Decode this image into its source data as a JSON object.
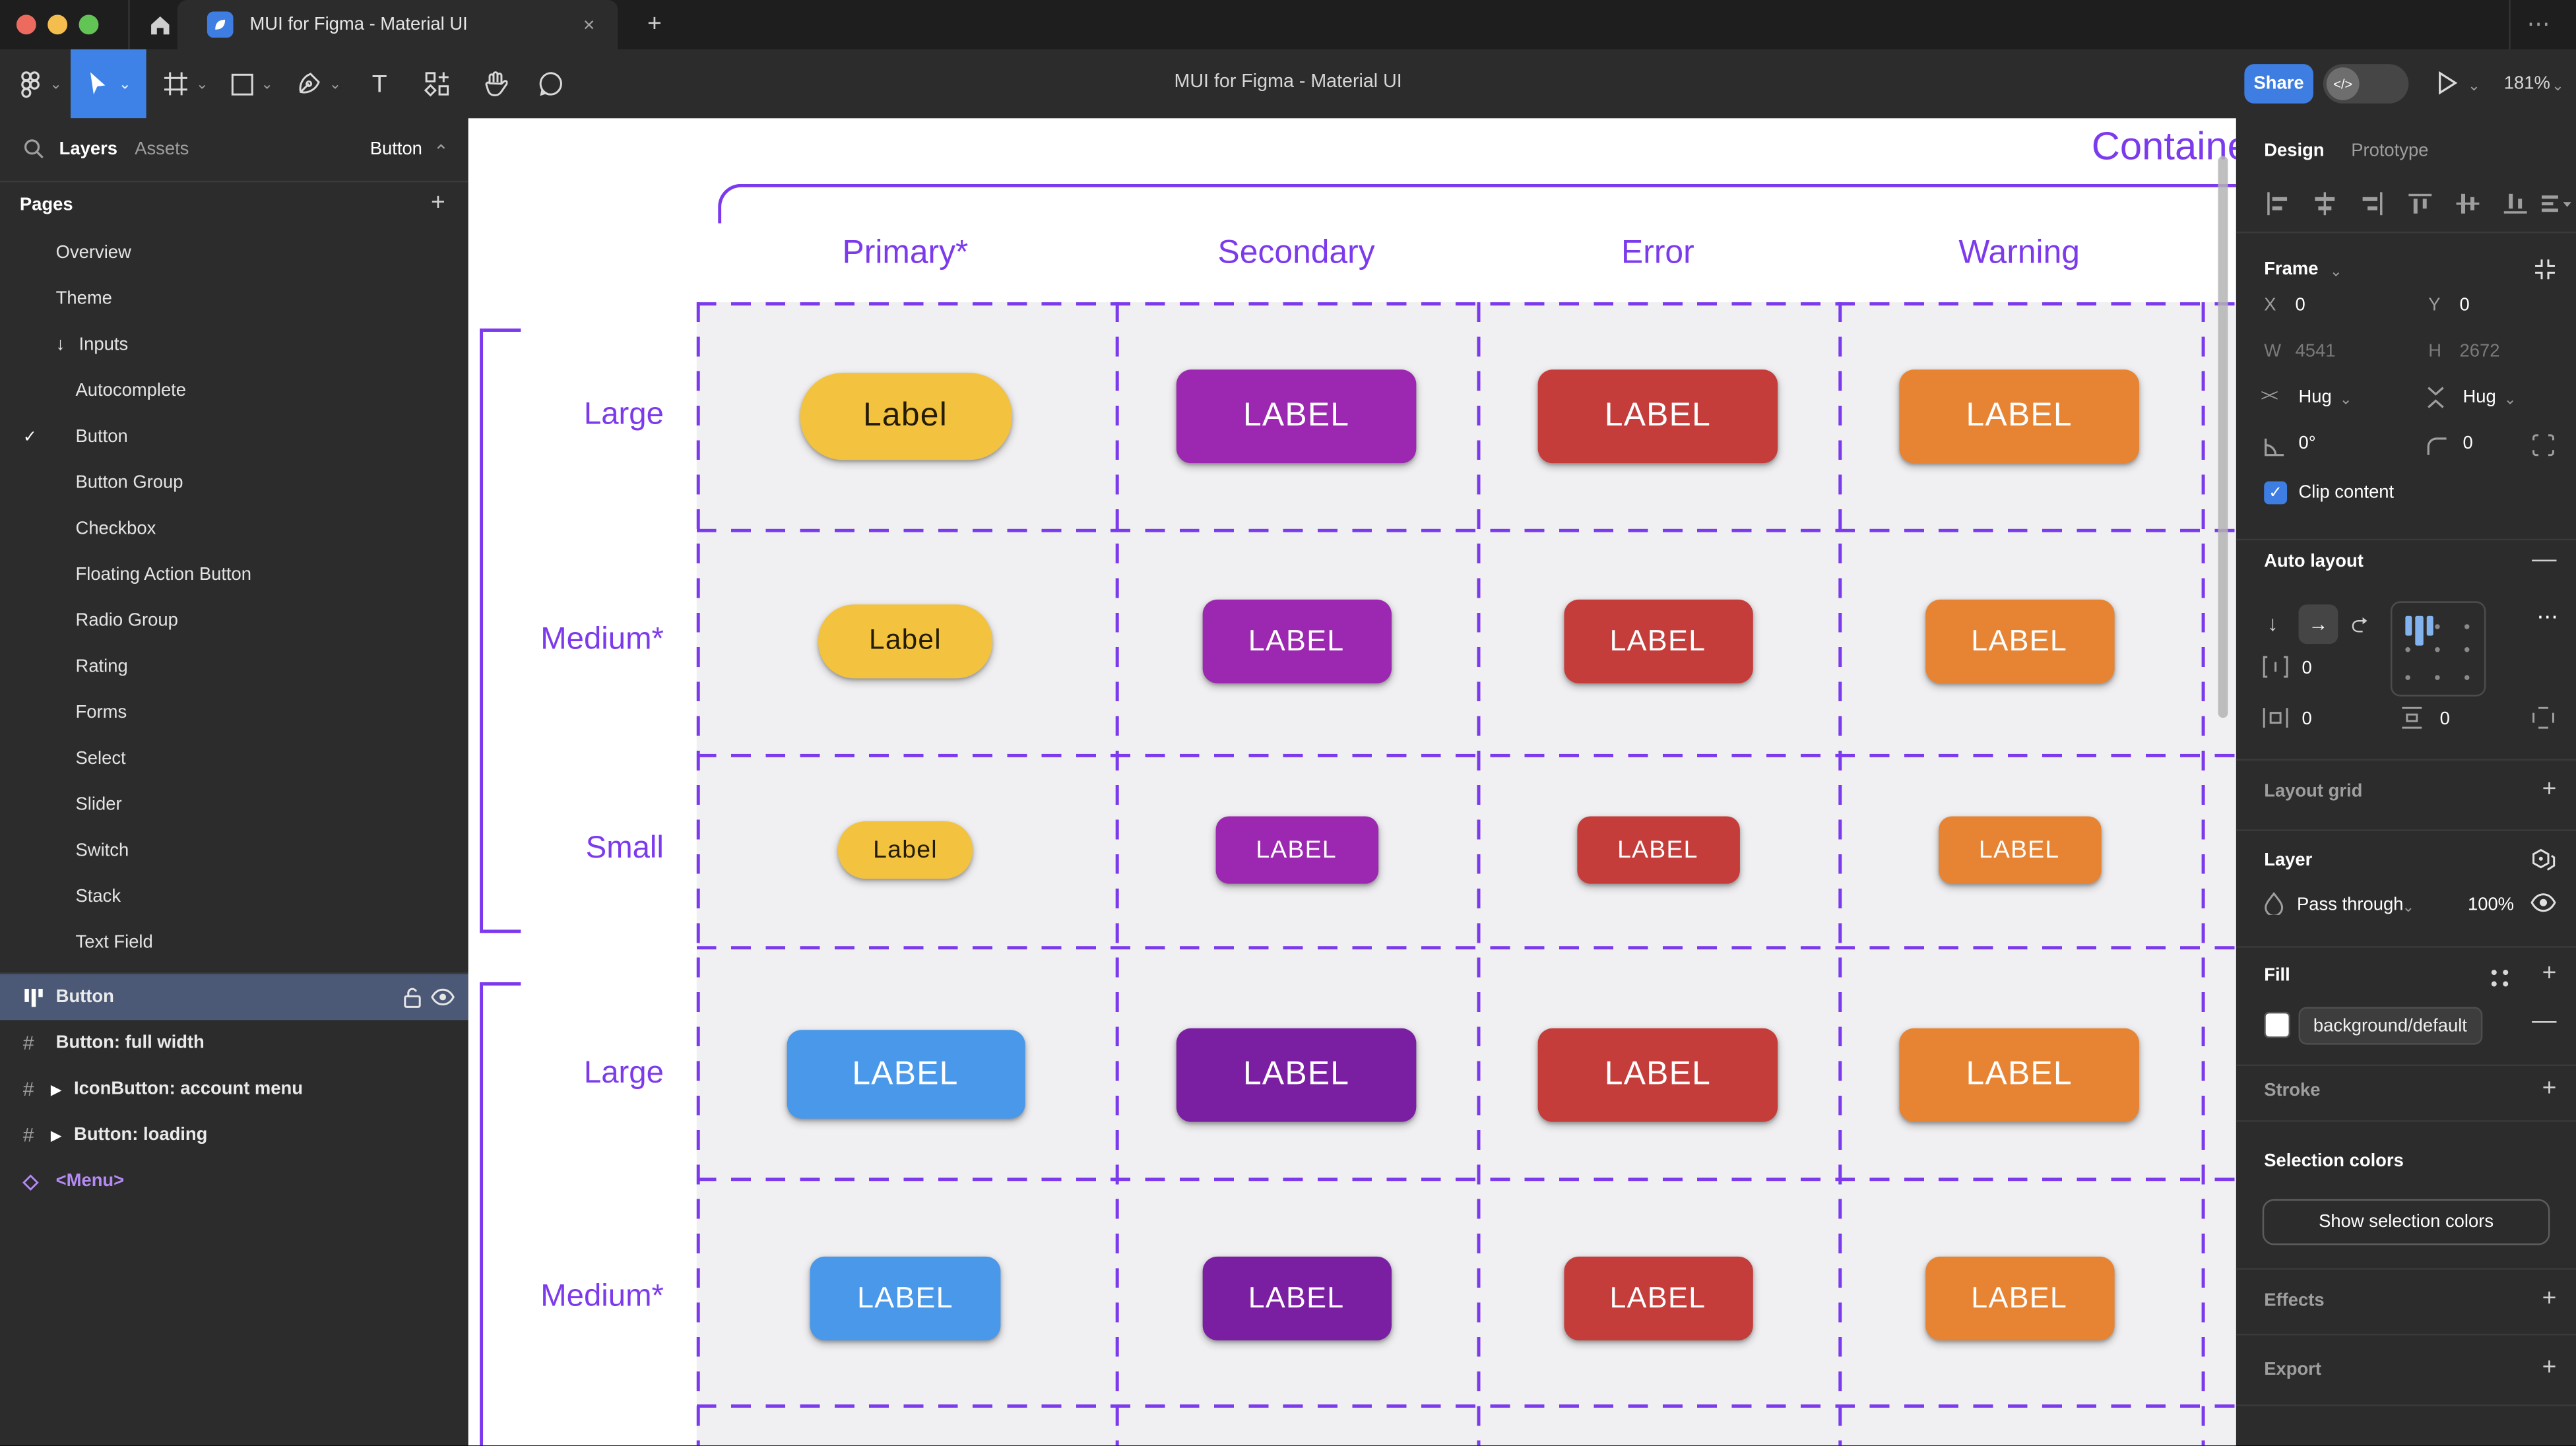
{
  "window": {
    "tab_title": "MUI for Figma - Material UI",
    "toolbar_title": "MUI for Figma - Material UI",
    "share_label": "Share",
    "zoom_level": "181%"
  },
  "icons": {
    "plus": "+",
    "minus": "—",
    "more_h": "⋯",
    "more_dots": "•••",
    "close": "×",
    "check": "✓",
    "chevron_down": "⌄",
    "chevron_up": "⌃",
    "arrow_down": "↓",
    "arrow_right": "→",
    "wrap": "⮌",
    "hash": "#",
    "diamond": "◇",
    "expand": "▶",
    "code": "</>",
    "h_resize": "><",
    "droplet": "◔"
  },
  "sidebar": {
    "tabs": [
      {
        "label": "Layers",
        "active": true
      },
      {
        "label": "Assets",
        "active": false
      }
    ],
    "page_picker": "Button",
    "pages_header": "Pages",
    "pages": [
      {
        "label": "Overview",
        "indent": 1
      },
      {
        "label": "Theme",
        "indent": 1
      },
      {
        "label": "Inputs",
        "indent": 1,
        "arrow": true
      },
      {
        "label": "Autocomplete",
        "indent": 2
      },
      {
        "label": "Button",
        "indent": 2,
        "checked": true
      },
      {
        "label": "Button Group",
        "indent": 2
      },
      {
        "label": "Checkbox",
        "indent": 2
      },
      {
        "label": "Floating Action Button",
        "indent": 2
      },
      {
        "label": "Radio Group",
        "indent": 2
      },
      {
        "label": "Rating",
        "indent": 2
      },
      {
        "label": "Forms",
        "indent": 2
      },
      {
        "label": "Select",
        "indent": 2
      },
      {
        "label": "Slider",
        "indent": 2
      },
      {
        "label": "Switch",
        "indent": 2
      },
      {
        "label": "Stack",
        "indent": 2
      },
      {
        "label": "Text Field",
        "indent": 2
      }
    ],
    "layers": [
      {
        "label": "Button",
        "icon": "auto-layout",
        "selected": true
      },
      {
        "label": "Button: full width",
        "icon": "frame"
      },
      {
        "label": "IconButton: account menu",
        "icon": "frame",
        "expand": true
      },
      {
        "label": "Button: loading",
        "icon": "frame",
        "expand": true
      },
      {
        "label": "<Menu>",
        "icon": "component-instance",
        "purple": true
      }
    ]
  },
  "canvas": {
    "section_title": "Contained",
    "columns": [
      "Primary*",
      "Secondary",
      "Error",
      "Warning"
    ],
    "rows": [
      {
        "label": "Large",
        "cells": [
          {
            "variant": "primary",
            "label": "Label"
          },
          {
            "variant": "secondary",
            "label": "LABEL"
          },
          {
            "variant": "error",
            "label": "LABEL"
          },
          {
            "variant": "warning",
            "label": "LABEL"
          }
        ]
      },
      {
        "label": "Medium*",
        "cells": [
          {
            "variant": "primary",
            "label": "Label"
          },
          {
            "variant": "secondary",
            "label": "LABEL"
          },
          {
            "variant": "error",
            "label": "LABEL"
          },
          {
            "variant": "warning",
            "label": "LABEL"
          }
        ]
      },
      {
        "label": "Small",
        "cells": [
          {
            "variant": "primary",
            "label": "Label"
          },
          {
            "variant": "secondary",
            "label": "LABEL"
          },
          {
            "variant": "error",
            "label": "LABEL"
          },
          {
            "variant": "warning",
            "label": "LABEL"
          }
        ]
      },
      {
        "label": "Large",
        "cells": [
          {
            "variant": "info",
            "label": "LABEL"
          },
          {
            "variant": "secondary_dark",
            "label": "LABEL"
          },
          {
            "variant": "error",
            "label": "LABEL"
          },
          {
            "variant": "warning",
            "label": "LABEL"
          }
        ]
      },
      {
        "label": "Medium*",
        "cells": [
          {
            "variant": "info",
            "label": "LABEL"
          },
          {
            "variant": "secondary_dark",
            "label": "LABEL"
          },
          {
            "variant": "error",
            "label": "LABEL"
          },
          {
            "variant": "warning",
            "label": "LABEL"
          }
        ]
      }
    ],
    "colors": {
      "annotation": "#7C3AED",
      "cell_bg": "#F0F0F2",
      "primary": "#F3C33F",
      "primary_text": "#241C04",
      "secondary": "#9C27B0",
      "secondary_dark": "#7B1FA2",
      "error": "#C43D3A",
      "warning": "#E78434",
      "info": "#4A98EA",
      "button_text": "#FFFFFF"
    }
  },
  "inspector": {
    "tabs": [
      {
        "label": "Design",
        "active": true
      },
      {
        "label": "Prototype",
        "active": false
      }
    ],
    "frame": {
      "title": "Frame",
      "x_label": "X",
      "x_value": "0",
      "y_label": "Y",
      "y_value": "0",
      "w_label": "W",
      "w_value": "4541",
      "h_label": "H",
      "h_value": "2672",
      "h_sizing": "Hug",
      "v_sizing": "Hug",
      "rotation": "0°",
      "corner_radius": "0",
      "clip_label": "Clip content",
      "clip_checked": true
    },
    "auto_layout": {
      "title": "Auto layout",
      "gap": "0",
      "padding_h": "0",
      "padding_v": "0"
    },
    "layout_grid": {
      "title": "Layout grid"
    },
    "layer": {
      "title": "Layer",
      "blend_mode": "Pass through",
      "opacity": "100%"
    },
    "fill": {
      "title": "Fill",
      "style_name": "background/default"
    },
    "stroke": {
      "title": "Stroke"
    },
    "selection_colors": {
      "title": "Selection colors",
      "button_label": "Show selection colors"
    },
    "effects": {
      "title": "Effects"
    },
    "export": {
      "title": "Export"
    }
  },
  "traffic_lights": {
    "red": "#ED6A5E",
    "yellow": "#F4BE4F",
    "green": "#61C454"
  }
}
